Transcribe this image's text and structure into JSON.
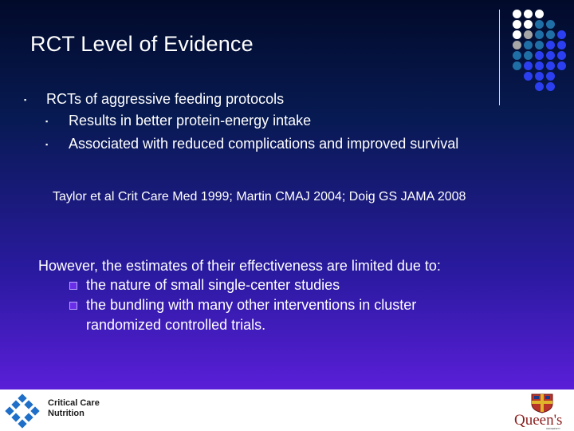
{
  "slide": {
    "title": "RCT Level of Evidence",
    "bullet_marker": "▪",
    "main_bullet": "RCTs of aggressive feeding protocols",
    "sub_bullets": [
      "Results in better protein-energy intake",
      "Associated with reduced complications and improved survival"
    ],
    "references": "Taylor et al Crit Care Med 1999; Martin CMAJ 2004; Doig GS JAMA 2008",
    "however": "However, the estimates of their effectiveness are limited due to:",
    "limitations": [
      "the nature of small single-center studies",
      "the bundling with many other interventions in cluster",
      "randomized controlled trials."
    ]
  },
  "footer": {
    "ccn_line1": "Critical Care",
    "ccn_line2": "Nutrition",
    "queens_name": "Queen's",
    "queens_sub": "UNIVERSITY"
  },
  "colors": {
    "dot_white": "#ffffff",
    "dot_gray": "#a6a6a6",
    "dot_teal": "#1f6fa6",
    "dot_blue": "#2b3ff0"
  }
}
